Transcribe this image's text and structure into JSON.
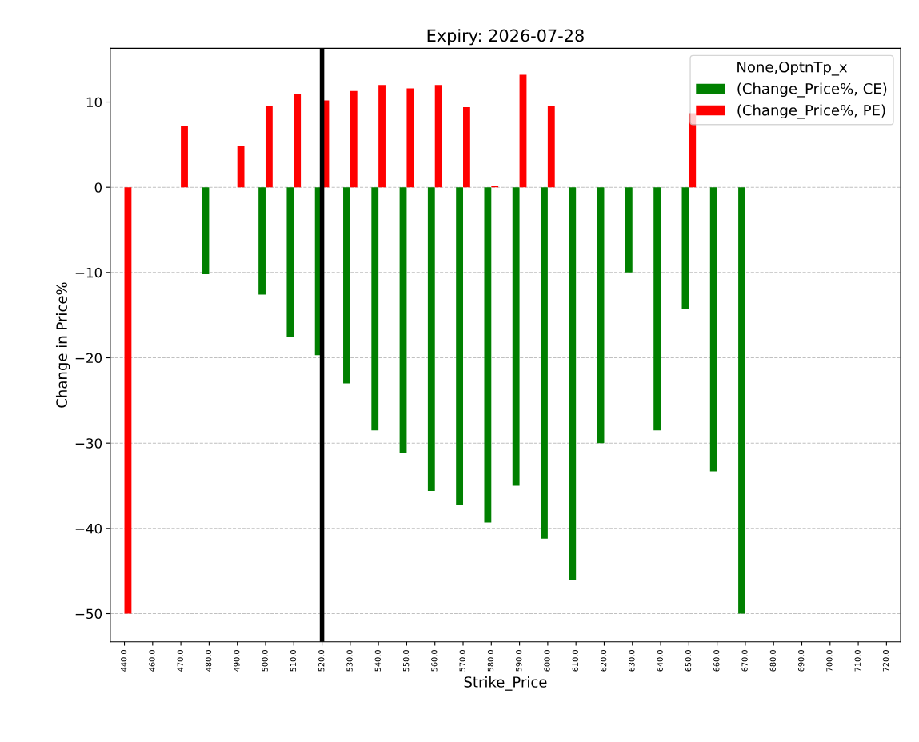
{
  "chart_data": {
    "type": "bar",
    "title": "Expiry: 2026-07-28",
    "xlabel": "Strike_Price",
    "ylabel": "Change in Price%",
    "legend_title": "None,OptnTp_x",
    "categories": [
      "440.0",
      "460.0",
      "470.0",
      "480.0",
      "490.0",
      "500.0",
      "510.0",
      "520.0",
      "530.0",
      "540.0",
      "550.0",
      "560.0",
      "570.0",
      "580.0",
      "590.0",
      "600.0",
      "610.0",
      "620.0",
      "630.0",
      "640.0",
      "650.0",
      "660.0",
      "670.0",
      "680.0",
      "690.0",
      "700.0",
      "710.0",
      "720.0"
    ],
    "series": [
      {
        "name": "(Change_Price%, CE)",
        "color": "#008000",
        "values": [
          null,
          null,
          null,
          -10.2,
          null,
          -12.6,
          -17.6,
          -19.7,
          -23.0,
          -28.5,
          -31.2,
          -35.6,
          -37.2,
          -39.3,
          -35.0,
          -41.2,
          -46.1,
          -30.0,
          -10.0,
          -28.5,
          -14.3,
          -33.3,
          -50.0,
          null,
          null,
          null,
          null,
          null
        ]
      },
      {
        "name": "(Change_Price%, PE)",
        "color": "#ff0000",
        "values": [
          -50.0,
          null,
          7.2,
          null,
          4.8,
          9.5,
          10.9,
          10.2,
          11.3,
          12.0,
          11.6,
          12.0,
          9.4,
          0.1,
          13.2,
          9.5,
          null,
          null,
          null,
          null,
          8.7,
          null,
          null,
          null,
          null,
          null,
          null,
          null
        ]
      }
    ],
    "ylim": [
      -53.3,
      16.3
    ],
    "yticks": [
      -50,
      -40,
      -30,
      -20,
      -10,
      0,
      10
    ],
    "ref_lines": [
      {
        "axis": "x",
        "value": "520.0",
        "color": "#000000"
      }
    ],
    "grid": "y",
    "legend": "top right"
  }
}
